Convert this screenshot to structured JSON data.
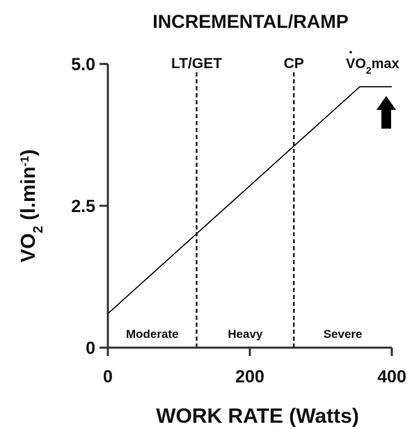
{
  "chart_data": {
    "type": "line",
    "title": "INCREMENTAL/RAMP",
    "x_label": "WORK RATE (Watts)",
    "y_label": [
      "VO",
      "2",
      " (l.min",
      "-1",
      ")"
    ],
    "xlim": [
      0,
      400
    ],
    "ylim": [
      0,
      5
    ],
    "xticks": [
      0,
      200,
      400
    ],
    "yticks": [
      0,
      2.5,
      {
        "value": 5,
        "label": "5.0"
      }
    ],
    "series": [
      {
        "color": "#000000",
        "x": [
          0,
          355,
          400
        ],
        "values": [
          0.6,
          4.6,
          4.6
        ]
      }
    ],
    "thresholds": [
      {
        "label": "LT/GET",
        "x": 125
      },
      {
        "label": "CP",
        "x": 262
      }
    ],
    "max_label": [
      "VO",
      "2",
      "max"
    ],
    "domains": [
      "Moderate",
      "Heavy",
      "Severe"
    ]
  }
}
